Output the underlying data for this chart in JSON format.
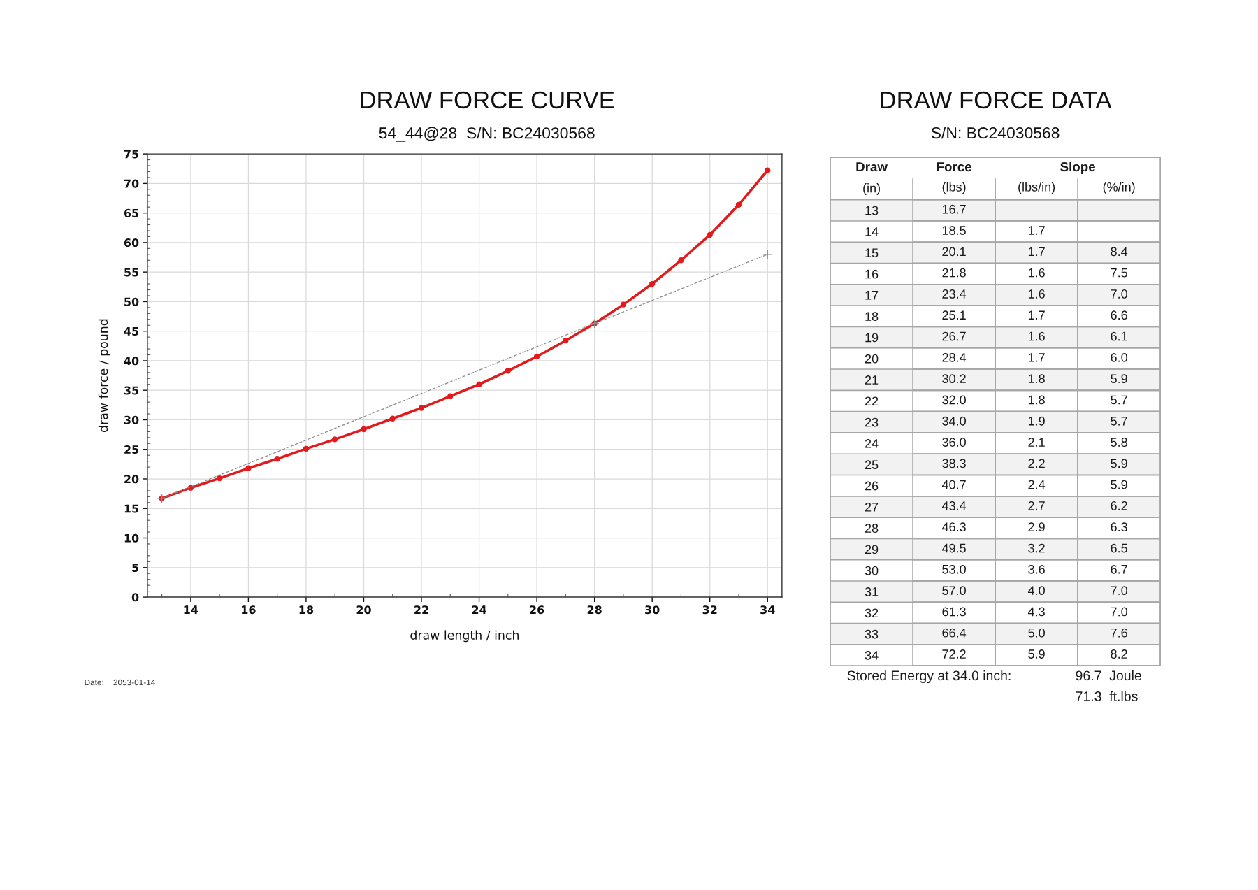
{
  "chart_data": [
    {
      "type": "line",
      "title": "DRAW FORCE CURVE",
      "subtitle": "54_44@28  S/N: BC24030568",
      "xlabel": "draw length / inch",
      "ylabel": "draw force / pound",
      "series": [
        {
          "color": "#e31a1c",
          "marker": "circle",
          "line_style": "solid",
          "x": [
            13,
            14,
            15,
            16,
            17,
            18,
            19,
            20,
            21,
            22,
            23,
            24,
            25,
            26,
            27,
            28,
            29,
            30,
            31,
            32,
            33,
            34
          ],
          "values": [
            16.7,
            18.5,
            20.1,
            21.8,
            23.4,
            25.1,
            26.7,
            28.4,
            30.2,
            32.0,
            34.0,
            36.0,
            38.3,
            40.7,
            43.4,
            46.3,
            49.5,
            53.0,
            57.0,
            61.3,
            66.4,
            72.2
          ]
        },
        {
          "color": "#8c8c8c",
          "marker": "cross",
          "line_style": "dashed",
          "x": [
            13,
            28,
            34
          ],
          "values": [
            16.7,
            46.3,
            58.0
          ]
        }
      ],
      "xlim": [
        12.5,
        34.5
      ],
      "xticks": [
        {
          "value": 13,
          "label": null
        },
        14,
        {
          "value": 15,
          "label": null
        },
        16,
        {
          "value": 17,
          "label": null
        },
        18,
        {
          "value": 19,
          "label": null
        },
        20,
        {
          "value": 21,
          "label": null
        },
        22,
        {
          "value": 23,
          "label": null
        },
        24,
        {
          "value": 25,
          "label": null
        },
        26,
        {
          "value": 27,
          "label": null
        },
        28,
        {
          "value": 29,
          "label": null
        },
        30,
        {
          "value": 31,
          "label": null
        },
        32,
        {
          "value": 33,
          "label": null
        },
        34
      ],
      "ylim": [
        0,
        75
      ],
      "yticks": [
        0,
        {
          "value": 1,
          "label": null
        },
        {
          "value": 2,
          "label": null
        },
        {
          "value": 3,
          "label": null
        },
        {
          "value": 4,
          "label": null
        },
        5,
        {
          "value": 6,
          "label": null
        },
        {
          "value": 7,
          "label": null
        },
        {
          "value": 8,
          "label": null
        },
        {
          "value": 9,
          "label": null
        },
        10,
        {
          "value": 11,
          "label": null
        },
        {
          "value": 12,
          "label": null
        },
        {
          "value": 13,
          "label": null
        },
        {
          "value": 14,
          "label": null
        },
        15,
        {
          "value": 16,
          "label": null
        },
        {
          "value": 17,
          "label": null
        },
        {
          "value": 18,
          "label": null
        },
        {
          "value": 19,
          "label": null
        },
        20,
        {
          "value": 21,
          "label": null
        },
        {
          "value": 22,
          "label": null
        },
        {
          "value": 23,
          "label": null
        },
        {
          "value": 24,
          "label": null
        },
        25,
        {
          "value": 26,
          "label": null
        },
        {
          "value": 27,
          "label": null
        },
        {
          "value": 28,
          "label": null
        },
        {
          "value": 29,
          "label": null
        },
        30,
        {
          "value": 31,
          "label": null
        },
        {
          "value": 32,
          "label": null
        },
        {
          "value": 33,
          "label": null
        },
        {
          "value": 34,
          "label": null
        },
        35,
        {
          "value": 36,
          "label": null
        },
        {
          "value": 37,
          "label": null
        },
        {
          "value": 38,
          "label": null
        },
        {
          "value": 39,
          "label": null
        },
        40,
        {
          "value": 41,
          "label": null
        },
        {
          "value": 42,
          "label": null
        },
        {
          "value": 43,
          "label": null
        },
        {
          "value": 44,
          "label": null
        },
        45,
        {
          "value": 46,
          "label": null
        },
        {
          "value": 47,
          "label": null
        },
        {
          "value": 48,
          "label": null
        },
        {
          "value": 49,
          "label": null
        },
        50,
        {
          "value": 51,
          "label": null
        },
        {
          "value": 52,
          "label": null
        },
        {
          "value": 53,
          "label": null
        },
        {
          "value": 54,
          "label": null
        },
        55,
        {
          "value": 56,
          "label": null
        },
        {
          "value": 57,
          "label": null
        },
        {
          "value": 58,
          "label": null
        },
        {
          "value": 59,
          "label": null
        },
        60,
        {
          "value": 61,
          "label": null
        },
        {
          "value": 62,
          "label": null
        },
        {
          "value": 63,
          "label": null
        },
        {
          "value": 64,
          "label": null
        },
        65,
        {
          "value": 66,
          "label": null
        },
        {
          "value": 67,
          "label": null
        },
        {
          "value": 68,
          "label": null
        },
        {
          "value": 69,
          "label": null
        },
        70,
        {
          "value": 71,
          "label": null
        },
        {
          "value": 72,
          "label": null
        },
        {
          "value": 73,
          "label": null
        },
        {
          "value": 74,
          "label": null
        },
        75
      ],
      "grid": true,
      "annotations": [
        "Date:    2053-01-14"
      ]
    },
    {
      "type": "heatmap",
      "title": "DRAW FORCE DATA",
      "subtitle": "S/N: BC24030568",
      "categories": [
        "(lbs)",
        "(lbs/in)",
        "(%/in)"
      ],
      "y_categories": [
        "13",
        "14",
        "15",
        "16",
        "17",
        "18",
        "19",
        "20",
        "21",
        "22",
        "23",
        "24",
        "25",
        "26",
        "27",
        "28",
        "29",
        "30",
        "31",
        "32",
        "33",
        "34"
      ],
      "cells": [
        [
          16.7,
          null,
          null
        ],
        [
          18.5,
          1.7,
          null
        ],
        [
          20.1,
          1.7,
          8.4
        ],
        [
          21.8,
          1.6,
          7.5
        ],
        [
          23.4,
          1.6,
          7.0
        ],
        [
          25.1,
          1.7,
          6.6
        ],
        [
          26.7,
          1.6,
          6.1
        ],
        [
          28.4,
          1.7,
          6.0
        ],
        [
          30.2,
          1.8,
          5.9
        ],
        [
          32.0,
          1.8,
          5.7
        ],
        [
          34.0,
          1.9,
          5.7
        ],
        [
          36.0,
          2.1,
          5.8
        ],
        [
          38.3,
          2.2,
          5.9
        ],
        [
          40.7,
          2.4,
          5.9
        ],
        [
          43.4,
          2.7,
          6.2
        ],
        [
          46.3,
          2.9,
          6.3
        ],
        [
          49.5,
          3.2,
          6.5
        ],
        [
          53.0,
          3.6,
          6.7
        ],
        [
          57.0,
          4.0,
          7.0
        ],
        [
          61.3,
          4.3,
          7.0
        ],
        [
          66.4,
          5.0,
          7.6
        ],
        [
          72.2,
          5.9,
          8.2
        ]
      ],
      "cell_labels": [
        [
          "16.7",
          null,
          null
        ],
        [
          "18.5",
          "1.7",
          null
        ],
        [
          "20.1",
          "1.7",
          "8.4"
        ],
        [
          "21.8",
          "1.6",
          "7.5"
        ],
        [
          "23.4",
          "1.6",
          "7.0"
        ],
        [
          "25.1",
          "1.7",
          "6.6"
        ],
        [
          "26.7",
          "1.6",
          "6.1"
        ],
        [
          "28.4",
          "1.7",
          "6.0"
        ],
        [
          "30.2",
          "1.8",
          "5.9"
        ],
        [
          "32.0",
          "1.8",
          "5.7"
        ],
        [
          "34.0",
          "1.9",
          "5.7"
        ],
        [
          "36.0",
          "2.1",
          "5.8"
        ],
        [
          "38.3",
          "2.2",
          "5.9"
        ],
        [
          "40.7",
          "2.4",
          "5.9"
        ],
        [
          "43.4",
          "2.7",
          "6.2"
        ],
        [
          "46.3",
          "2.9",
          "6.3"
        ],
        [
          "49.5",
          "3.2",
          "6.5"
        ],
        [
          "53.0",
          "3.6",
          "6.7"
        ],
        [
          "57.0",
          "4.0",
          "7.0"
        ],
        [
          "61.3",
          "4.3",
          "7.0"
        ],
        [
          "66.4",
          "5.0",
          "7.6"
        ],
        [
          "72.2",
          "5.9",
          "8.2"
        ]
      ],
      "annotations": [
        "Draw",
        "(in)",
        "Force",
        "Slope",
        "Stored Energy at 34.0 inch:",
        "96.7  Joule",
        "71.3  ft.lbs"
      ]
    }
  ]
}
